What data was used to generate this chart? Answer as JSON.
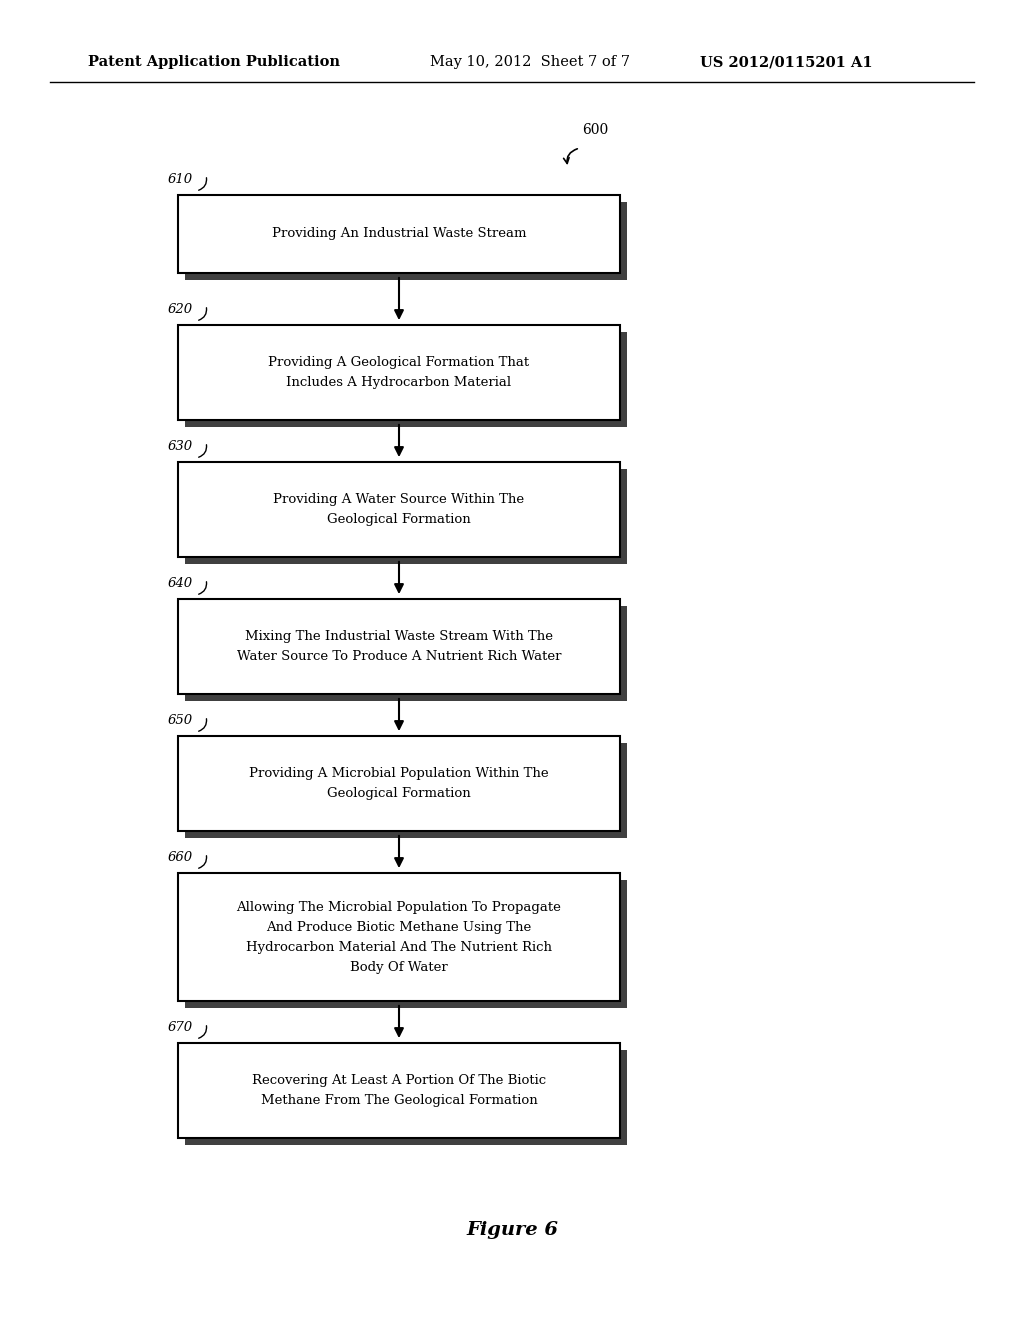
{
  "background_color": "#ffffff",
  "header_left": "Patent Application Publication",
  "header_center": "May 10, 2012  Sheet 7 of 7",
  "header_right": "US 2012/0115201 A1",
  "figure_label": "Figure 6",
  "flow_ref": "600",
  "boxes": [
    {
      "id": "610",
      "lines": [
        "Providing An Industrial Waste Stream"
      ]
    },
    {
      "id": "620",
      "lines": [
        "Providing A Geological Formation That",
        "Includes A Hydrocarbon Material"
      ]
    },
    {
      "id": "630",
      "lines": [
        "Providing A Water Source Within The",
        "Geological Formation"
      ]
    },
    {
      "id": "640",
      "lines": [
        "Mixing The Industrial Waste Stream With The",
        "Water Source To Produce A Nutrient Rich Water"
      ]
    },
    {
      "id": "650",
      "lines": [
        "Providing A Microbial Population Within The",
        "Geological Formation"
      ]
    },
    {
      "id": "660",
      "lines": [
        "Allowing The Microbial Population To Propagate",
        "And Produce Biotic Methane Using The",
        "Hydrocarbon Material And The Nutrient Rich",
        "Body Of Water"
      ]
    },
    {
      "id": "670",
      "lines": [
        "Recovering At Least A Portion Of The Biotic",
        "Methane From The Geological Formation"
      ]
    }
  ]
}
